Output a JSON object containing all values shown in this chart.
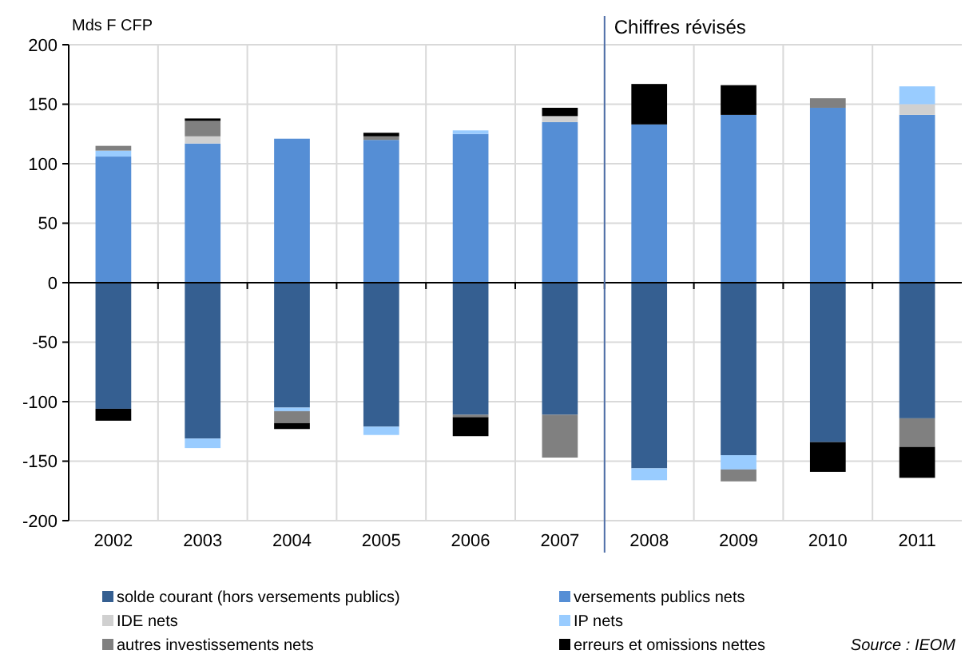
{
  "chart_data": {
    "type": "bar",
    "stacked": true,
    "ylabel": "Mds F CFP",
    "categories": [
      "2002",
      "2003",
      "2004",
      "2005",
      "2006",
      "2007",
      "2008",
      "2009",
      "2010",
      "2011"
    ],
    "series": [
      {
        "name": "solde courant (hors versements publics)",
        "color": "#355f91",
        "values": [
          -106,
          -131,
          -105,
          -121,
          -111,
          -111,
          -156,
          -145,
          -134,
          -114
        ]
      },
      {
        "name": "versements publics nets",
        "color": "#558ed5",
        "values": [
          106,
          117,
          121,
          120,
          125,
          135,
          133,
          141,
          147,
          141
        ]
      },
      {
        "name": "IDE nets",
        "color": "#d0d0d0",
        "values": [
          null,
          6,
          null,
          null,
          null,
          5,
          null,
          null,
          null,
          9
        ]
      },
      {
        "name": "IP nets",
        "color": "#99ccff",
        "values": [
          5,
          -8,
          -3,
          -7,
          3,
          null,
          -10,
          -12,
          null,
          15
        ]
      },
      {
        "name": "autres investissements nets",
        "color": "#808080",
        "values": [
          4,
          13,
          -10,
          3,
          -2,
          -36,
          null,
          -10,
          8,
          -24
        ]
      },
      {
        "name": "erreurs et omissions nettes",
        "color": "#000000",
        "values": [
          -10,
          2,
          -5,
          3,
          -16,
          7,
          34,
          25,
          -25,
          -26
        ]
      }
    ],
    "ylim": [
      -200,
      200
    ],
    "yticks": [
      -200,
      -150,
      -100,
      -50,
      0,
      50,
      100,
      150,
      200
    ],
    "grid": true,
    "legend": "bottom",
    "ref_lines": [
      {
        "axis": "x",
        "value": "2008",
        "label": "Chiffres révisés",
        "color": "#4f6fa8"
      }
    ],
    "annotations": [
      "Source : IEOM"
    ]
  }
}
